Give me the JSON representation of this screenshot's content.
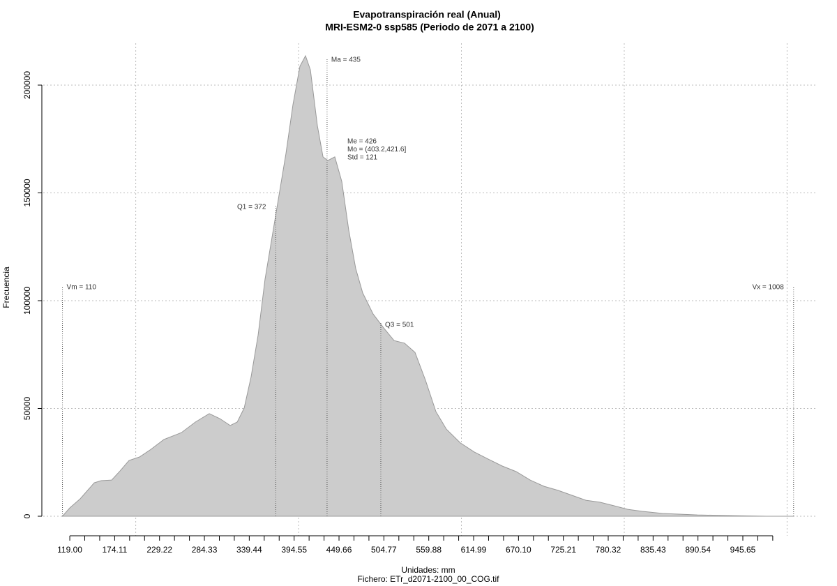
{
  "chart_data": {
    "type": "area",
    "title": "Evapotranspiración real (Anual)",
    "subtitle": "MRI-ESM2-0 ssp585 (Periodo de 2071 a 2100)",
    "x_label": "Unidades: mm",
    "caption": "Fichero: ETr_d2071-2100_00_COG.tif",
    "y_label": "Frecuencia",
    "color": "#cccccc",
    "x": [
      110,
      119,
      131.8,
      149,
      157.5,
      170.4,
      180.7,
      191.8,
      204.7,
      217.5,
      234.6,
      256.1,
      273.2,
      290.3,
      303.2,
      316,
      324.6,
      333.2,
      341.7,
      350.3,
      358.8,
      367.4,
      376,
      384.5,
      393.1,
      401.7,
      408.5,
      414.5,
      423.1,
      430,
      435.9,
      444.5,
      453.1,
      461.6,
      470.2,
      478.8,
      491.6,
      504.5,
      517.3,
      530.2,
      543,
      555.9,
      568.7,
      581.6,
      598.7,
      615.8,
      632.9,
      650.1,
      667.2,
      684.4,
      701.5,
      718.6,
      735.8,
      752.9,
      770,
      787.2,
      804.3,
      821.4,
      847.1,
      889.9,
      932.8,
      975.6,
      1008
    ],
    "values": [
      0,
      3900,
      8100,
      15500,
      16500,
      16800,
      21000,
      25900,
      27500,
      30700,
      35600,
      38800,
      43700,
      47600,
      45300,
      42100,
      43700,
      50200,
      64700,
      84100,
      110000,
      129400,
      148900,
      168300,
      190900,
      208700,
      213600,
      207100,
      181200,
      166700,
      165000,
      166700,
      155300,
      132700,
      114900,
      103600,
      93800,
      87400,
      81500,
      80300,
      76000,
      63100,
      48500,
      40400,
      34000,
      29800,
      26500,
      23300,
      20700,
      16800,
      13900,
      12000,
      9700,
      7400,
      6500,
      4900,
      3200,
      2300,
      1300,
      600,
      300,
      0,
      0
    ],
    "xlim": [
      86.4,
      1035.6
    ],
    "ylim": [
      -9061,
      219417
    ],
    "xticks": [
      {
        "value": 119,
        "label": "119.00"
      },
      174.11,
      229.22,
      284.33,
      339.44,
      394.55,
      449.66,
      504.77,
      559.88,
      614.99,
      {
        "value": 670.1,
        "label": "670.10"
      },
      725.21,
      780.32,
      835.43,
      890.54,
      945.65
    ],
    "xminorticks": [
      119,
      137.37,
      155.74,
      174.11,
      192.48,
      210.85,
      229.22,
      247.59,
      265.96,
      284.33,
      302.7,
      321.07,
      339.44,
      357.81,
      376.18,
      394.55,
      412.92,
      431.29,
      449.66,
      468.03,
      486.4,
      504.77,
      523.14,
      541.51,
      559.88,
      578.25,
      596.62,
      614.99,
      633.36,
      651.73,
      670.1,
      688.47,
      706.84,
      725.21,
      743.58,
      761.95,
      780.32,
      798.69,
      817.06,
      835.43,
      853.8,
      872.17,
      890.54,
      908.91,
      927.28,
      945.65,
      964.02,
      982.39
    ],
    "xgrid": [
      200,
      400,
      600,
      800,
      1000
    ],
    "yticks": [
      0,
      50000,
      100000,
      150000,
      200000
    ],
    "grid": true,
    "annotations": [
      {
        "label": "Vm = 110",
        "x": 110
      },
      {
        "label": "Q1 = 372",
        "x": 372
      },
      {
        "label": "Ma = 435",
        "x": 435
      },
      {
        "label": "Q3 = 501",
        "x": 501
      },
      {
        "label": "Vx = 1008",
        "x": 1008
      }
    ],
    "stats": [
      "Me = 426",
      "Mo = (403.2,421.6]",
      "Std = 121"
    ]
  }
}
